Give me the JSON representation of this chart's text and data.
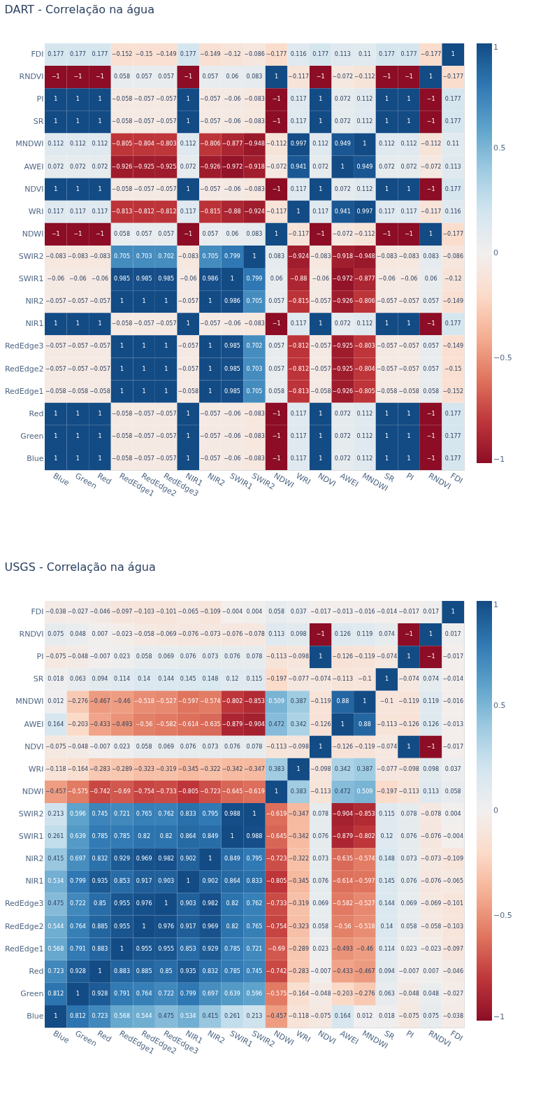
{
  "chart_data": [
    {
      "type": "heatmap",
      "title": "DART - Correlação na água",
      "data_labels": true,
      "clim": [
        -1,
        1
      ],
      "cticks": [
        -1,
        -0.5,
        0,
        0.5,
        1
      ],
      "categories": [
        "Blue",
        "Green",
        "Red",
        "RedEdge1",
        "RedEdge2",
        "RedEdge3",
        "NIR1",
        "NIR2",
        "SWIR1",
        "SWIR2",
        "NDWI",
        "WRI",
        "NDVI",
        "AWEI",
        "MNDWI",
        "SR",
        "PI",
        "RNDVI",
        "FDI"
      ],
      "y_categories": [
        "FDI",
        "RNDVI",
        "PI",
        "SR",
        "MNDWI",
        "AWEI",
        "NDVI",
        "WRI",
        "NDWI",
        "SWIR2",
        "SWIR1",
        "NIR2",
        "NIR1",
        "RedEdge3",
        "RedEdge2",
        "RedEdge1",
        "Red",
        "Green",
        "Blue"
      ],
      "cells": [
        [
          0.177,
          0.177,
          0.177,
          -0.152,
          -0.15,
          -0.149,
          0.177,
          -0.149,
          -0.12,
          -0.086,
          -0.177,
          0.116,
          0.177,
          0.113,
          0.11,
          0.177,
          0.177,
          -0.177,
          1
        ],
        [
          -1,
          -1,
          -1,
          0.058,
          0.057,
          0.057,
          -1,
          0.057,
          0.06,
          0.083,
          1,
          -0.117,
          -1,
          -0.072,
          -0.112,
          -1,
          -1,
          1,
          -0.177
        ],
        [
          1,
          1,
          1,
          -0.058,
          -0.057,
          -0.057,
          1,
          -0.057,
          -0.06,
          -0.083,
          -1,
          0.117,
          1,
          0.072,
          0.112,
          1,
          1,
          -1,
          0.177
        ],
        [
          1,
          1,
          1,
          -0.058,
          -0.057,
          -0.057,
          1,
          -0.057,
          -0.06,
          -0.083,
          -1,
          0.117,
          1,
          0.072,
          0.112,
          1,
          1,
          -1,
          0.177
        ],
        [
          0.112,
          0.112,
          0.112,
          -0.805,
          -0.804,
          -0.803,
          0.112,
          -0.806,
          -0.877,
          -0.948,
          -0.112,
          0.997,
          0.112,
          0.949,
          1,
          0.112,
          0.112,
          -0.112,
          0.11
        ],
        [
          0.072,
          0.072,
          0.072,
          -0.926,
          -0.925,
          -0.925,
          0.072,
          -0.926,
          -0.972,
          -0.918,
          -0.072,
          0.941,
          0.072,
          1,
          0.949,
          0.072,
          0.072,
          -0.072,
          0.113
        ],
        [
          1,
          1,
          1,
          -0.058,
          -0.057,
          -0.057,
          1,
          -0.057,
          -0.06,
          -0.083,
          -1,
          0.117,
          1,
          0.072,
          0.112,
          1,
          1,
          -1,
          0.177
        ],
        [
          0.117,
          0.117,
          0.117,
          -0.813,
          -0.812,
          -0.812,
          0.117,
          -0.815,
          -0.88,
          -0.924,
          -0.117,
          1,
          0.117,
          0.941,
          0.997,
          0.117,
          0.117,
          -0.117,
          0.116
        ],
        [
          -1,
          -1,
          -1,
          0.058,
          0.057,
          0.057,
          -1,
          0.057,
          0.06,
          0.083,
          1,
          -0.117,
          -1,
          -0.072,
          -0.112,
          -1,
          -1,
          1,
          -0.177
        ],
        [
          -0.083,
          -0.083,
          -0.083,
          0.705,
          0.703,
          0.702,
          -0.083,
          0.705,
          0.799,
          1,
          0.083,
          -0.924,
          -0.083,
          -0.918,
          -0.948,
          -0.083,
          -0.083,
          0.083,
          -0.086
        ],
        [
          -0.06,
          -0.06,
          -0.06,
          0.985,
          0.985,
          0.985,
          -0.06,
          0.986,
          1,
          0.799,
          0.06,
          -0.88,
          -0.06,
          -0.972,
          -0.877,
          -0.06,
          -0.06,
          0.06,
          -0.12
        ],
        [
          -0.057,
          -0.057,
          -0.057,
          1,
          1,
          1,
          -0.057,
          1,
          0.986,
          0.705,
          0.057,
          -0.815,
          -0.057,
          -0.926,
          -0.806,
          -0.057,
          -0.057,
          0.057,
          -0.149
        ],
        [
          1,
          1,
          1,
          -0.058,
          -0.057,
          -0.057,
          1,
          -0.057,
          -0.06,
          -0.083,
          -1,
          0.117,
          1,
          0.072,
          0.112,
          1,
          1,
          -1,
          0.177
        ],
        [
          -0.057,
          -0.057,
          -0.057,
          1,
          1,
          1,
          -0.057,
          1,
          0.985,
          0.702,
          0.057,
          -0.812,
          -0.057,
          -0.925,
          -0.803,
          -0.057,
          -0.057,
          0.057,
          -0.149
        ],
        [
          -0.057,
          -0.057,
          -0.057,
          1,
          1,
          1,
          -0.057,
          1,
          0.985,
          0.703,
          0.057,
          -0.812,
          -0.057,
          -0.925,
          -0.804,
          -0.057,
          -0.057,
          0.057,
          -0.15
        ],
        [
          -0.058,
          -0.058,
          -0.058,
          1,
          1,
          1,
          -0.058,
          1,
          0.985,
          0.705,
          0.058,
          -0.813,
          -0.058,
          -0.926,
          -0.805,
          -0.058,
          -0.058,
          0.058,
          -0.152
        ],
        [
          1,
          1,
          1,
          -0.058,
          -0.057,
          -0.057,
          1,
          -0.057,
          -0.06,
          -0.083,
          -1,
          0.117,
          1,
          0.072,
          0.112,
          1,
          1,
          -1,
          0.177
        ],
        [
          1,
          1,
          1,
          -0.058,
          -0.057,
          -0.057,
          1,
          -0.057,
          -0.06,
          -0.083,
          -1,
          0.117,
          1,
          0.072,
          0.112,
          1,
          1,
          -1,
          0.177
        ],
        [
          1,
          1,
          1,
          -0.058,
          -0.057,
          -0.057,
          1,
          -0.057,
          -0.06,
          -0.083,
          -1,
          0.117,
          1,
          0.072,
          0.112,
          1,
          1,
          -1,
          0.177
        ]
      ]
    },
    {
      "type": "heatmap",
      "title": "USGS - Correlação na água",
      "data_labels": true,
      "clim": [
        -1,
        1
      ],
      "cticks": [
        -1,
        -0.5,
        0,
        0.5,
        1
      ],
      "categories": [
        "Blue",
        "Green",
        "Red",
        "RedEdge1",
        "RedEdge2",
        "RedEdge3",
        "NIR1",
        "NIR2",
        "SWIR1",
        "SWIR2",
        "NDWI",
        "WRI",
        "NDVI",
        "AWEI",
        "MNDWI",
        "SR",
        "PI",
        "RNDVI",
        "FDI"
      ],
      "y_categories": [
        "FDI",
        "RNDVI",
        "PI",
        "SR",
        "MNDWI",
        "AWEI",
        "NDVI",
        "WRI",
        "NDWI",
        "SWIR2",
        "SWIR1",
        "NIR2",
        "NIR1",
        "RedEdge3",
        "RedEdge2",
        "RedEdge1",
        "Red",
        "Green",
        "Blue"
      ],
      "cells": [
        [
          -0.038,
          -0.027,
          -0.046,
          -0.097,
          -0.103,
          -0.101,
          -0.065,
          -0.109,
          -0.004,
          0.004,
          0.058,
          0.037,
          -0.017,
          -0.013,
          -0.016,
          -0.014,
          -0.017,
          0.017,
          1
        ],
        [
          0.075,
          0.048,
          0.007,
          -0.023,
          -0.058,
          -0.069,
          -0.076,
          -0.073,
          -0.076,
          -0.078,
          0.113,
          0.098,
          -1,
          0.126,
          0.119,
          0.074,
          -1,
          1,
          0.017
        ],
        [
          -0.075,
          -0.048,
          -0.007,
          0.023,
          0.058,
          0.069,
          0.076,
          0.073,
          0.076,
          0.078,
          -0.113,
          -0.098,
          1,
          -0.126,
          -0.119,
          -0.074,
          1,
          -1,
          -0.017
        ],
        [
          0.018,
          0.063,
          0.094,
          0.114,
          0.14,
          0.144,
          0.145,
          0.148,
          0.12,
          0.115,
          -0.197,
          -0.077,
          -0.074,
          -0.113,
          -0.1,
          1,
          -0.074,
          0.074,
          -0.014
        ],
        [
          0.012,
          -0.276,
          -0.467,
          -0.46,
          -0.518,
          -0.527,
          -0.597,
          -0.574,
          -0.802,
          -0.853,
          0.509,
          0.387,
          -0.119,
          0.88,
          1,
          -0.1,
          -0.119,
          0.119,
          -0.016
        ],
        [
          0.164,
          -0.203,
          -0.433,
          -0.493,
          -0.56,
          -0.582,
          -0.614,
          -0.635,
          -0.879,
          -0.904,
          0.472,
          0.342,
          -0.126,
          1,
          0.88,
          -0.113,
          -0.126,
          0.126,
          -0.013
        ],
        [
          -0.075,
          -0.048,
          -0.007,
          0.023,
          0.058,
          0.069,
          0.076,
          0.073,
          0.076,
          0.078,
          -0.113,
          -0.098,
          1,
          -0.126,
          -0.119,
          -0.074,
          1,
          -1,
          -0.017
        ],
        [
          -0.118,
          -0.164,
          -0.283,
          -0.289,
          -0.323,
          -0.319,
          -0.345,
          -0.322,
          -0.342,
          -0.347,
          0.383,
          1,
          -0.098,
          0.342,
          0.387,
          -0.077,
          -0.098,
          0.098,
          0.037
        ],
        [
          -0.457,
          -0.575,
          -0.742,
          -0.69,
          -0.754,
          -0.733,
          -0.805,
          -0.723,
          -0.645,
          -0.619,
          1,
          0.383,
          -0.113,
          0.472,
          0.509,
          -0.197,
          -0.113,
          0.113,
          0.058
        ],
        [
          0.213,
          0.596,
          0.745,
          0.721,
          0.765,
          0.762,
          0.833,
          0.795,
          0.988,
          1,
          -0.619,
          -0.347,
          0.078,
          -0.904,
          -0.853,
          0.115,
          0.078,
          -0.078,
          0.004
        ],
        [
          0.261,
          0.639,
          0.785,
          0.785,
          0.82,
          0.82,
          0.864,
          0.849,
          1,
          0.988,
          -0.645,
          -0.342,
          0.076,
          -0.879,
          -0.802,
          0.12,
          0.076,
          -0.076,
          -0.004
        ],
        [
          0.415,
          0.697,
          0.832,
          0.929,
          0.969,
          0.982,
          0.902,
          1,
          0.849,
          0.795,
          -0.723,
          -0.322,
          0.073,
          -0.635,
          -0.574,
          0.148,
          0.073,
          -0.073,
          -0.109
        ],
        [
          0.534,
          0.799,
          0.935,
          0.853,
          0.917,
          0.903,
          1,
          0.902,
          0.864,
          0.833,
          -0.805,
          -0.345,
          0.076,
          -0.614,
          -0.597,
          0.145,
          0.076,
          -0.076,
          -0.065
        ],
        [
          0.475,
          0.722,
          0.85,
          0.955,
          0.976,
          1,
          0.903,
          0.982,
          0.82,
          0.762,
          -0.733,
          -0.319,
          0.069,
          -0.582,
          -0.527,
          0.144,
          0.069,
          -0.069,
          -0.101
        ],
        [
          0.544,
          0.764,
          0.885,
          0.955,
          1,
          0.976,
          0.917,
          0.969,
          0.82,
          0.765,
          -0.754,
          -0.323,
          0.058,
          -0.56,
          -0.518,
          0.14,
          0.058,
          -0.058,
          -0.103
        ],
        [
          0.568,
          0.791,
          0.883,
          1,
          0.955,
          0.955,
          0.853,
          0.929,
          0.785,
          0.721,
          -0.69,
          -0.289,
          0.023,
          -0.493,
          -0.46,
          0.114,
          0.023,
          -0.023,
          -0.097
        ],
        [
          0.723,
          0.928,
          1,
          0.883,
          0.885,
          0.85,
          0.935,
          0.832,
          0.785,
          0.745,
          -0.742,
          -0.283,
          -0.007,
          -0.433,
          -0.467,
          0.094,
          -0.007,
          0.007,
          -0.046
        ],
        [
          0.812,
          1,
          0.928,
          0.791,
          0.764,
          0.722,
          0.799,
          0.697,
          0.639,
          0.596,
          -0.575,
          -0.164,
          -0.048,
          -0.203,
          -0.276,
          0.063,
          -0.048,
          0.048,
          -0.027
        ],
        [
          1,
          0.812,
          0.723,
          0.568,
          0.544,
          0.475,
          0.534,
          0.415,
          0.261,
          0.213,
          -0.457,
          -0.118,
          -0.075,
          0.164,
          0.012,
          0.018,
          -0.075,
          0.075,
          -0.038
        ]
      ]
    }
  ]
}
